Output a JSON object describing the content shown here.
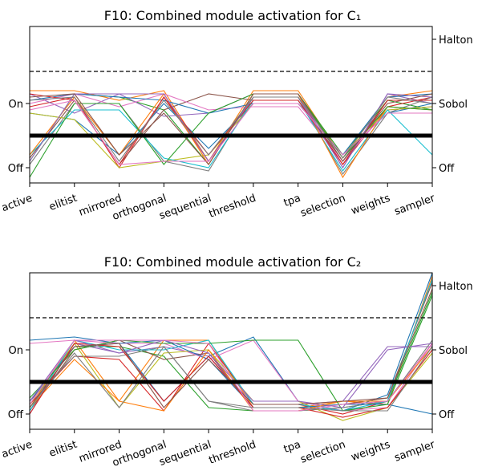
{
  "chart_data": [
    {
      "type": "parallel-coordinates",
      "title": "F10: Combined module activation for C₁",
      "dimensions": [
        "active",
        "elitist",
        "mirrored",
        "orthogonal",
        "sequential",
        "threshold",
        "tpa",
        "selection",
        "weights",
        "sampler"
      ],
      "left_axis": {
        "labels": [
          "Off",
          "On"
        ],
        "values": [
          0,
          1
        ]
      },
      "right_axis": {
        "labels": [
          "Off",
          "Sobol",
          "Halton"
        ],
        "values": [
          0,
          1,
          2
        ]
      },
      "reference_lines": [
        {
          "value_left": 0.5,
          "style": "thick-solid"
        },
        {
          "value_right": 1.5,
          "style": "dashed"
        }
      ],
      "ylim": [
        -0.2,
        2.1
      ],
      "series": [
        {
          "values": [
            0.85,
            0.75,
            0.2,
            1.0,
            0.3,
            1.0,
            1.0,
            0.2,
            0.85,
            1.0
          ]
        },
        {
          "values": [
            1.2,
            1.2,
            1.05,
            1.2,
            0.1,
            1.2,
            1.2,
            0.15,
            1.1,
            1.2
          ]
        },
        {
          "values": [
            0.1,
            1.15,
            1.1,
            0.9,
            0.05,
            1.15,
            1.15,
            0.2,
            1.05,
            0.9
          ]
        },
        {
          "values": [
            0.95,
            1.1,
            0.0,
            1.1,
            0.1,
            1.1,
            1.1,
            0.05,
            0.95,
            1.1
          ]
        },
        {
          "values": [
            1.15,
            0.85,
            1.15,
            0.8,
            0.85,
            1.15,
            1.15,
            0.0,
            1.15,
            1.0
          ]
        },
        {
          "values": [
            0.15,
            1.05,
            0.05,
            0.9,
            1.15,
            1.05,
            1.05,
            0.1,
            1.05,
            1.05
          ]
        },
        {
          "values": [
            1.0,
            1.15,
            0.95,
            1.15,
            0.9,
            0.95,
            0.95,
            0.1,
            0.9,
            0.95
          ]
        },
        {
          "values": [
            0.05,
            1.0,
            1.0,
            0.1,
            -0.05,
            1.1,
            1.1,
            -0.1,
            0.85,
            1.1
          ]
        },
        {
          "values": [
            0.85,
            0.75,
            0.0,
            0.1,
            0.2,
            1.0,
            1.0,
            0.2,
            0.9,
            0.95
          ]
        },
        {
          "values": [
            0.2,
            0.9,
            0.9,
            0.15,
            0.0,
            1.05,
            1.05,
            -0.05,
            0.9,
            0.2
          ]
        },
        {
          "values": [
            1.05,
            1.15,
            1.1,
            1.05,
            0.85,
            1.0,
            1.0,
            0.2,
            1.1,
            1.15
          ]
        },
        {
          "values": [
            0.2,
            1.1,
            0.2,
            1.15,
            0.05,
            1.15,
            1.15,
            -0.15,
            0.95,
            0.9
          ]
        },
        {
          "values": [
            -0.15,
            1.0,
            1.0,
            0.05,
            0.85,
            1.15,
            1.15,
            0.15,
            0.95,
            0.9
          ]
        },
        {
          "values": [
            1.15,
            1.05,
            0.05,
            1.1,
            0.2,
            1.05,
            1.05,
            0.05,
            1.05,
            1.05
          ]
        },
        {
          "values": [
            0.1,
            1.15,
            1.15,
            1.15,
            0.1,
            1.1,
            1.1,
            0.0,
            1.15,
            1.1
          ]
        },
        {
          "values": [
            1.1,
            1.15,
            0.2,
            0.85,
            0.05,
            1.15,
            1.15,
            0.1,
            1.0,
            1.15
          ]
        },
        {
          "values": [
            0.9,
            1.05,
            0.05,
            0.1,
            0.1,
            1.0,
            1.0,
            0.2,
            0.85,
            0.85
          ]
        },
        {
          "values": [
            1.05,
            1.1,
            0.1,
            1.05,
            0.2,
            1.1,
            1.1,
            0.15,
            1.1,
            1.0
          ]
        }
      ]
    },
    {
      "type": "parallel-coordinates",
      "title": "F10: Combined module activation for C₂",
      "dimensions": [
        "active",
        "elitist",
        "mirrored",
        "orthogonal",
        "sequential",
        "threshold",
        "tpa",
        "selection",
        "weights",
        "sampler"
      ],
      "left_axis": {
        "labels": [
          "Off",
          "On"
        ],
        "values": [
          0,
          1
        ]
      },
      "right_axis": {
        "labels": [
          "Off",
          "Sobol",
          "Halton"
        ],
        "values": [
          0,
          1,
          2
        ]
      },
      "reference_lines": [
        {
          "value_left": 0.5,
          "style": "thick-solid"
        },
        {
          "value_right": 1.5,
          "style": "dashed"
        }
      ],
      "ylim": [
        -0.2,
        2.1
      ],
      "series": [
        {
          "values": [
            1.15,
            1.2,
            1.1,
            0.2,
            0.9,
            1.2,
            0.2,
            0.05,
            0.3,
            2.2
          ]
        },
        {
          "values": [
            0.1,
            1.15,
            0.2,
            1.15,
            1.15,
            0.1,
            0.1,
            0.2,
            0.15,
            2.15
          ]
        },
        {
          "values": [
            0.2,
            1.05,
            1.05,
            0.9,
            0.1,
            0.05,
            0.05,
            0.1,
            0.2,
            1.9
          ]
        },
        {
          "values": [
            0.15,
            0.9,
            0.85,
            0.05,
            1.1,
            0.15,
            0.15,
            0.0,
            0.2,
            1.1
          ]
        },
        {
          "values": [
            0.0,
            1.1,
            0.95,
            1.05,
            0.9,
            0.15,
            0.15,
            0.2,
            1.05,
            1.05
          ]
        },
        {
          "values": [
            0.05,
            1.0,
            1.15,
            0.85,
            0.95,
            0.1,
            0.1,
            0.15,
            0.25,
            2.05
          ]
        },
        {
          "values": [
            1.1,
            1.15,
            1.1,
            1.1,
            0.85,
            1.15,
            0.2,
            0.05,
            0.1,
            1.1
          ]
        },
        {
          "values": [
            0.2,
            0.9,
            0.9,
            1.05,
            0.2,
            0.05,
            0.05,
            0.1,
            0.2,
            1.15
          ]
        },
        {
          "values": [
            0.15,
            1.1,
            0.1,
            0.95,
            1.0,
            0.2,
            0.2,
            -0.1,
            0.1,
            0.95
          ]
        },
        {
          "values": [
            0.05,
            1.15,
            1.0,
            1.0,
            1.15,
            0.15,
            0.15,
            0.05,
            0.2,
            2.1
          ]
        },
        {
          "values": [
            0.2,
            1.05,
            1.1,
            1.15,
            0.85,
            0.1,
            0.1,
            0.15,
            0.15,
            0.0
          ]
        },
        {
          "values": [
            0.1,
            0.85,
            0.2,
            0.05,
            1.0,
            0.05,
            0.05,
            0.2,
            0.2,
            1.05
          ]
        },
        {
          "values": [
            0.25,
            1.0,
            1.15,
            1.1,
            1.1,
            1.15,
            1.15,
            0.05,
            0.15,
            1.85
          ]
        },
        {
          "values": [
            0.0,
            1.1,
            1.05,
            0.2,
            0.9,
            0.1,
            0.1,
            -0.05,
            0.1,
            1.0
          ]
        },
        {
          "values": [
            0.2,
            1.15,
            0.95,
            1.15,
            0.95,
            0.2,
            0.2,
            0.1,
            1.0,
            1.1
          ]
        },
        {
          "values": [
            0.1,
            1.05,
            1.1,
            0.1,
            0.85,
            0.15,
            0.15,
            0.2,
            0.25,
            1.95
          ]
        },
        {
          "values": [
            0.15,
            1.15,
            1.15,
            1.15,
            1.1,
            0.05,
            0.05,
            0.15,
            0.2,
            1.1
          ]
        },
        {
          "values": [
            0.1,
            0.95,
            0.1,
            1.05,
            0.2,
            0.1,
            0.1,
            0.05,
            0.05,
            1.05
          ]
        }
      ]
    }
  ],
  "series_palette": [
    "#1f77b4",
    "#ff7f0e",
    "#2ca02c",
    "#d62728",
    "#9467bd",
    "#8c564b",
    "#e377c2",
    "#7f7f7f",
    "#bcbd22",
    "#17becf"
  ]
}
